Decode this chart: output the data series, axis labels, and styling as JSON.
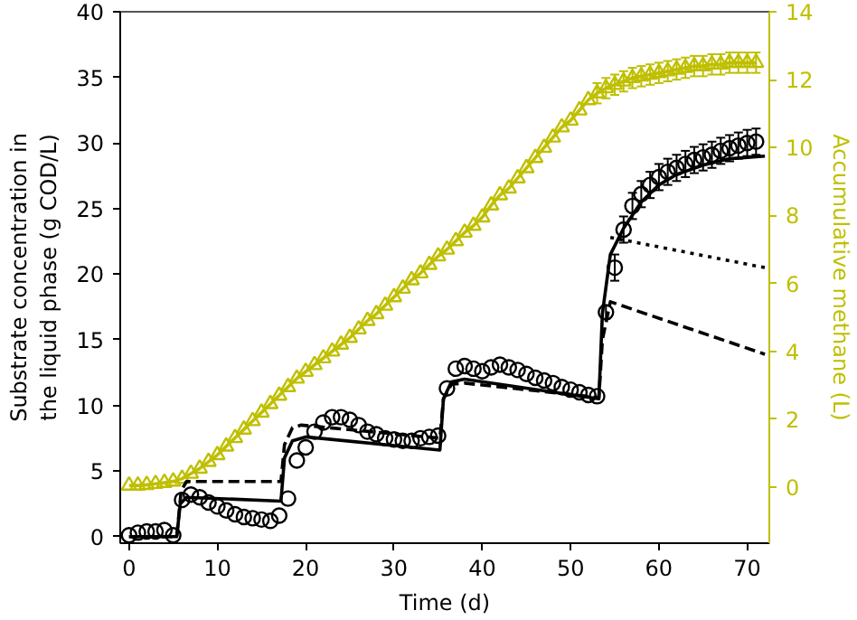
{
  "chart_data": {
    "type": "scatter",
    "xlabel": "Time (d)",
    "ylabel": "Substrate concentration in the liquid phase (g COD/L)",
    "y2label": "Accumulative methane (L)",
    "xlim": [
      -1,
      72.5
    ],
    "xticks": [
      0,
      10,
      20,
      30,
      40,
      50,
      60,
      70
    ],
    "ylim": [
      -0.5,
      40
    ],
    "yticks": [
      0,
      5,
      10,
      15,
      20,
      25,
      30,
      35,
      40
    ],
    "y2lim": [
      -1.65,
      14
    ],
    "y2ticks": [
      0,
      2,
      4,
      6,
      8,
      10,
      12,
      14
    ],
    "grid": false,
    "series": [
      {
        "type": "line",
        "axis": "y2",
        "color": "#bfbf00",
        "marker": "triangle",
        "line_style": "solid",
        "x": [
          0,
          1,
          2,
          3,
          4,
          5,
          6,
          7,
          8,
          9,
          10,
          11,
          12,
          13,
          14,
          15,
          16,
          17,
          18,
          19,
          20,
          21,
          22,
          23,
          24,
          25,
          26,
          27,
          28,
          29,
          30,
          31,
          32,
          33,
          34,
          35,
          36,
          37,
          38,
          39,
          40,
          41,
          42,
          43,
          44,
          45,
          46,
          47,
          48,
          49,
          50,
          51,
          52,
          53,
          54,
          55,
          56,
          57,
          58,
          59,
          60,
          61,
          62,
          63,
          64,
          65,
          66,
          67,
          68,
          69,
          70,
          71
        ],
        "values": [
          0.05,
          0.05,
          0.07,
          0.1,
          0.13,
          0.17,
          0.25,
          0.4,
          0.55,
          0.75,
          0.95,
          1.2,
          1.45,
          1.7,
          1.95,
          2.2,
          2.45,
          2.7,
          2.95,
          3.2,
          3.4,
          3.6,
          3.8,
          4.0,
          4.2,
          4.4,
          4.65,
          4.9,
          5.1,
          5.35,
          5.6,
          5.85,
          6.1,
          6.3,
          6.55,
          6.8,
          7.0,
          7.25,
          7.5,
          7.7,
          7.95,
          8.3,
          8.6,
          8.8,
          9.1,
          9.4,
          9.7,
          10.0,
          10.3,
          10.6,
          10.8,
          11.1,
          11.4,
          11.6,
          11.75,
          11.85,
          11.95,
          12.05,
          12.1,
          12.15,
          12.2,
          12.25,
          12.3,
          12.35,
          12.4,
          12.4,
          12.45,
          12.45,
          12.5,
          12.5,
          12.5,
          12.5
        ],
        "errors": [
          null,
          null,
          null,
          null,
          null,
          null,
          null,
          null,
          null,
          null,
          null,
          null,
          null,
          null,
          null,
          null,
          null,
          null,
          null,
          null,
          null,
          null,
          null,
          null,
          null,
          null,
          null,
          null,
          null,
          null,
          null,
          null,
          null,
          null,
          null,
          null,
          null,
          null,
          null,
          null,
          null,
          null,
          null,
          null,
          null,
          null,
          null,
          null,
          null,
          null,
          null,
          null,
          null,
          0.3,
          0.3,
          0.3,
          0.3,
          0.3,
          0.3,
          0.3,
          0.3,
          0.3,
          0.3,
          0.3,
          0.3,
          0.3,
          0.3,
          0.3,
          0.3,
          0.3,
          0.3,
          0.3
        ]
      },
      {
        "type": "line",
        "color": "#000000",
        "marker": "none",
        "line_style": "solid",
        "x": [
          0,
          5.4,
          5.8,
          6.5,
          17.2,
          17.6,
          18.5,
          20,
          35.2,
          35.6,
          36.5,
          38,
          53.2,
          53.6,
          54.5,
          56,
          58,
          60,
          62,
          65,
          68,
          72
        ],
        "values": [
          0,
          0,
          2.5,
          3.0,
          2.7,
          6.0,
          7.3,
          7.6,
          6.6,
          10.5,
          11.8,
          12.0,
          10.5,
          17,
          21.5,
          23.5,
          25.5,
          26.8,
          27.6,
          28.3,
          28.8,
          29.0
        ]
      },
      {
        "type": "line",
        "color": "#000000",
        "marker": "none",
        "line_style": "dashed",
        "x": [
          0,
          5.4,
          5.9,
          6.5,
          17.2,
          17.6,
          18.5,
          19.5,
          35.2,
          35.6,
          36.5,
          38,
          53.2,
          53.6,
          54.5,
          72
        ],
        "values": [
          0,
          0,
          3.5,
          4.2,
          4.2,
          7.0,
          8.3,
          8.5,
          7.5,
          10.5,
          11.6,
          11.7,
          10.6,
          15,
          17.9,
          13.9
        ]
      },
      {
        "type": "line",
        "color": "#000000",
        "marker": "none",
        "line_style": "dotted",
        "x": [
          54.5,
          72
        ],
        "values": [
          22.8,
          20.5
        ]
      },
      {
        "color": "#000000",
        "marker": "circle",
        "x": [
          0,
          1,
          2,
          3,
          4,
          5,
          6,
          7,
          8,
          9,
          10,
          11,
          12,
          13,
          14,
          15,
          16,
          17,
          18,
          19,
          20,
          21,
          22,
          23,
          24,
          25,
          26,
          27,
          28,
          29,
          30,
          31,
          32,
          33,
          34,
          35,
          36,
          37,
          38,
          39,
          40,
          41,
          42,
          43,
          44,
          45,
          46,
          47,
          48,
          49,
          50,
          51,
          52,
          53,
          54,
          55,
          56,
          57,
          58,
          59,
          60,
          61,
          62,
          63,
          64,
          65,
          66,
          67,
          68,
          69,
          70,
          71
        ],
        "values": [
          0.1,
          0.3,
          0.4,
          0.4,
          0.5,
          0.1,
          2.8,
          3.2,
          3.0,
          2.6,
          2.3,
          2.0,
          1.7,
          1.5,
          1.4,
          1.3,
          1.2,
          1.6,
          2.9,
          5.8,
          6.8,
          8.0,
          8.7,
          9.1,
          9.1,
          8.9,
          8.5,
          8.0,
          7.8,
          7.5,
          7.4,
          7.3,
          7.3,
          7.5,
          7.6,
          7.7,
          11.3,
          12.8,
          13.0,
          12.8,
          12.6,
          12.9,
          13.1,
          12.9,
          12.7,
          12.4,
          12.1,
          11.9,
          11.7,
          11.4,
          11.2,
          11.0,
          10.8,
          10.7,
          17.1,
          20.5,
          23.4,
          25.2,
          26.1,
          26.8,
          27.4,
          27.8,
          28.1,
          28.4,
          28.7,
          28.9,
          29.1,
          29.4,
          29.6,
          29.8,
          30.0,
          30.1
        ],
        "errors": [
          null,
          null,
          null,
          null,
          null,
          null,
          null,
          null,
          null,
          null,
          null,
          null,
          null,
          null,
          null,
          null,
          null,
          null,
          null,
          null,
          null,
          null,
          null,
          null,
          null,
          null,
          null,
          null,
          null,
          null,
          null,
          null,
          null,
          null,
          null,
          null,
          null,
          null,
          null,
          null,
          null,
          null,
          null,
          null,
          null,
          null,
          null,
          null,
          null,
          null,
          null,
          null,
          null,
          null,
          0.5,
          1.0,
          1.0,
          1.0,
          1.0,
          1.0,
          1.0,
          1.0,
          1.0,
          1.0,
          1.0,
          1.0,
          1.0,
          1.0,
          1.0,
          1.0,
          1.0,
          1.0
        ]
      }
    ]
  }
}
